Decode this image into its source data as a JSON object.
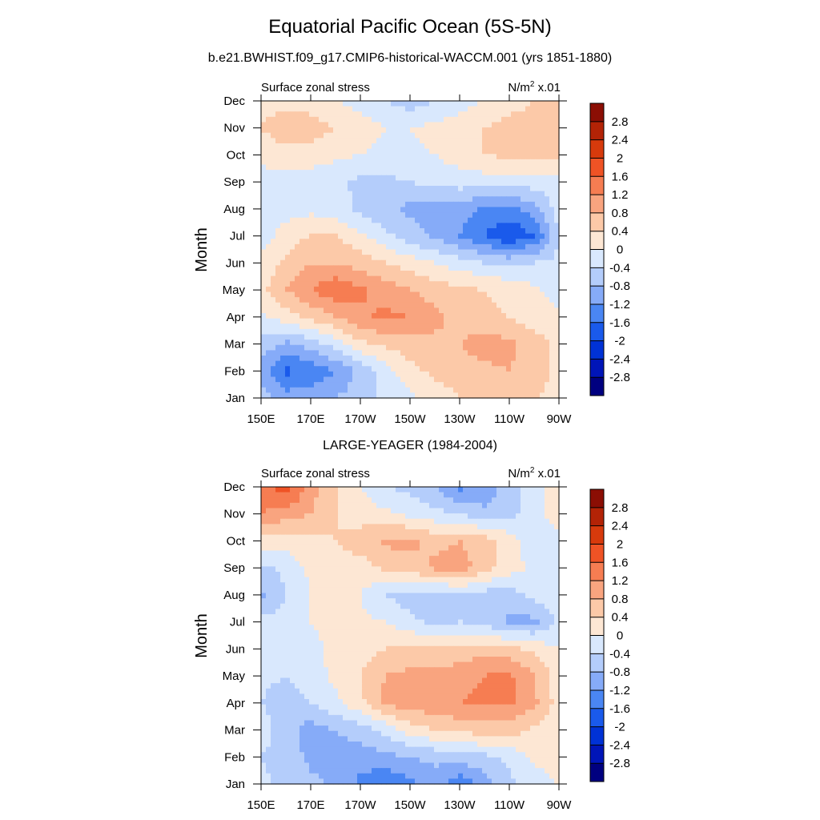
{
  "header": {
    "title": "Equatorial Pacific Ocean (5S-5N)",
    "subtitle": "b.e21.BWHIST.f09_g17.CMIP6-historical-WACCM.001 (yrs 1851-1880)"
  },
  "colors": {
    "levels": [
      "#000080",
      "#0015b8",
      "#0032d6",
      "#1a5aeb",
      "#4a86f3",
      "#86abf8",
      "#b4cdfb",
      "#d9e8fd",
      "#fde7d4",
      "#fcc9a8",
      "#f9a47f",
      "#f67d52",
      "#ef5325",
      "#d73a0c",
      "#b32306",
      "#8b0e04"
    ]
  },
  "chart_data": [
    {
      "type": "heatmap",
      "title": "",
      "left_label": "Surface zonal stress",
      "units": "N/m",
      "units_sup": "2",
      "units_suffix": " x.01",
      "xlabel": "",
      "ylabel": "Month",
      "x_ticks": [
        "150E",
        "170E",
        "170W",
        "150W",
        "130W",
        "110W",
        "90W"
      ],
      "x_lon": [
        150,
        170,
        190,
        210,
        230,
        250,
        270
      ],
      "y_ticks": [
        "Jan",
        "Feb",
        "Mar",
        "Apr",
        "May",
        "Jun",
        "Jul",
        "Aug",
        "Sep",
        "Oct",
        "Nov",
        "Dec"
      ],
      "colorbar_labels": [
        "-2.8",
        "-2.4",
        "-2",
        "-1.6",
        "-1.2",
        "-0.8",
        "-0.4",
        "0",
        "0.4",
        "0.8",
        "1.2",
        "1.6",
        "2",
        "2.4",
        "2.8"
      ],
      "lon": [
        150,
        160,
        170,
        180,
        190,
        200,
        210,
        220,
        230,
        240,
        250,
        260,
        270
      ],
      "months": [
        1,
        2,
        3,
        4,
        5,
        6,
        7,
        8,
        9,
        10,
        11,
        12
      ],
      "values": [
        [
          -0.6,
          -1.0,
          -1.0,
          -0.8,
          -0.6,
          -0.3,
          -0.1,
          0.2,
          0.4,
          0.6,
          0.5,
          0.4,
          0.3
        ],
        [
          -1.0,
          -1.7,
          -1.5,
          -1.2,
          -0.7,
          -0.2,
          0.3,
          0.5,
          0.6,
          0.7,
          0.8,
          0.6,
          0.3
        ],
        [
          -0.5,
          -0.9,
          -0.6,
          -0.2,
          0.3,
          0.5,
          0.6,
          0.7,
          0.8,
          1.0,
          0.9,
          0.6,
          0.3
        ],
        [
          -0.1,
          0.2,
          0.5,
          0.8,
          1.1,
          1.3,
          1.2,
          0.9,
          0.7,
          0.5,
          0.4,
          0.2,
          0.1
        ],
        [
          0.3,
          0.8,
          1.2,
          1.5,
          1.3,
          1.0,
          0.8,
          0.6,
          0.5,
          0.4,
          0.3,
          0.1,
          -0.2
        ],
        [
          0.1,
          0.5,
          0.8,
          0.8,
          0.6,
          0.4,
          0.2,
          0.0,
          -0.2,
          -0.4,
          -0.5,
          -0.4,
          -0.3
        ],
        [
          -0.2,
          0.2,
          0.4,
          0.4,
          0.1,
          -0.3,
          -0.6,
          -0.9,
          -1.2,
          -1.6,
          -2.0,
          -1.6,
          -0.4
        ],
        [
          -0.4,
          -0.2,
          -0.1,
          -0.2,
          -0.5,
          -0.7,
          -0.9,
          -1.0,
          -1.0,
          -1.3,
          -1.3,
          -1.0,
          -0.2
        ],
        [
          -0.3,
          -0.2,
          -0.2,
          -0.3,
          -0.5,
          -0.5,
          -0.4,
          -0.3,
          -0.2,
          -0.2,
          -0.2,
          -0.2,
          -0.1
        ],
        [
          0.2,
          0.3,
          0.2,
          0.1,
          0.0,
          -0.1,
          -0.1,
          0.0,
          0.2,
          0.4,
          0.5,
          0.5,
          0.5
        ],
        [
          0.4,
          0.6,
          0.6,
          0.4,
          0.2,
          0.0,
          0.0,
          0.1,
          0.2,
          0.4,
          0.5,
          0.5,
          0.5
        ],
        [
          0.3,
          0.3,
          0.2,
          0.0,
          -0.2,
          -0.4,
          -0.6,
          -0.4,
          -0.2,
          0.0,
          0.3,
          0.4,
          0.4
        ]
      ]
    },
    {
      "type": "heatmap",
      "title": "LARGE-YEAGER (1984-2004)",
      "left_label": "Surface zonal stress",
      "units": "N/m",
      "units_sup": "2",
      "units_suffix": " x.01",
      "xlabel": "",
      "ylabel": "Month",
      "x_ticks": [
        "150E",
        "170E",
        "170W",
        "150W",
        "130W",
        "110W",
        "90W"
      ],
      "x_lon": [
        150,
        170,
        190,
        210,
        230,
        250,
        270
      ],
      "y_ticks": [
        "Jan",
        "Feb",
        "Mar",
        "Apr",
        "May",
        "Jun",
        "Jul",
        "Aug",
        "Sep",
        "Oct",
        "Nov",
        "Dec"
      ],
      "colorbar_labels": [
        "-2.8",
        "-2.4",
        "-2",
        "-1.6",
        "-1.2",
        "-0.8",
        "-0.4",
        "0",
        "0.4",
        "0.8",
        "1.2",
        "1.6",
        "2",
        "2.4",
        "2.8"
      ],
      "lon": [
        150,
        160,
        170,
        180,
        190,
        200,
        210,
        220,
        230,
        240,
        250,
        260,
        270
      ],
      "months": [
        1,
        2,
        3,
        4,
        5,
        6,
        7,
        8,
        9,
        10,
        11,
        12
      ],
      "values": [
        [
          -0.3,
          -0.5,
          -0.7,
          -0.9,
          -1.3,
          -1.6,
          -1.3,
          -1.0,
          -1.5,
          -1.0,
          -0.5,
          -0.2,
          0.0
        ],
        [
          -0.4,
          -0.6,
          -0.9,
          -1.0,
          -1.0,
          -0.9,
          -0.8,
          -0.7,
          -0.6,
          -0.5,
          -0.3,
          0.1,
          0.2
        ],
        [
          -0.2,
          -0.6,
          -1.0,
          -0.8,
          -0.6,
          -0.3,
          0.2,
          0.4,
          0.5,
          0.6,
          0.6,
          0.3,
          0.1
        ],
        [
          -0.4,
          -0.6,
          -0.4,
          -0.1,
          0.3,
          0.9,
          1.0,
          1.1,
          1.2,
          1.3,
          1.3,
          0.9,
          0.2
        ],
        [
          -0.3,
          -0.4,
          -0.2,
          0.1,
          0.4,
          0.8,
          0.9,
          0.9,
          1.0,
          1.2,
          1.3,
          0.8,
          0.2
        ],
        [
          -0.2,
          -0.3,
          -0.1,
          0.1,
          0.2,
          0.4,
          0.5,
          0.5,
          0.6,
          0.6,
          0.5,
          0.3,
          0.0
        ],
        [
          -0.3,
          -0.2,
          0.0,
          0.1,
          0.1,
          0.0,
          -0.3,
          -0.5,
          -0.4,
          -0.5,
          -0.9,
          -0.9,
          -0.3
        ],
        [
          -0.9,
          -0.4,
          0.0,
          0.2,
          0.0,
          -0.4,
          -0.6,
          -0.6,
          -0.5,
          -0.6,
          -0.6,
          -0.3,
          -0.1
        ],
        [
          -0.5,
          -0.3,
          0.1,
          0.3,
          0.2,
          0.5,
          0.6,
          0.9,
          1.0,
          0.6,
          0.2,
          -0.1,
          -0.1
        ],
        [
          0.2,
          0.2,
          0.3,
          0.4,
          0.6,
          0.9,
          0.9,
          0.7,
          0.8,
          0.6,
          0.2,
          -0.3,
          -0.2
        ],
        [
          1.2,
          1.0,
          0.8,
          0.4,
          0.2,
          0.1,
          -0.1,
          -0.3,
          -0.4,
          -0.7,
          -0.5,
          -0.3,
          0.4
        ],
        [
          1.4,
          1.9,
          1.0,
          0.4,
          0.0,
          -0.4,
          -0.5,
          -0.8,
          -1.3,
          -1.1,
          -0.6,
          -0.2,
          0.2
        ]
      ]
    }
  ]
}
